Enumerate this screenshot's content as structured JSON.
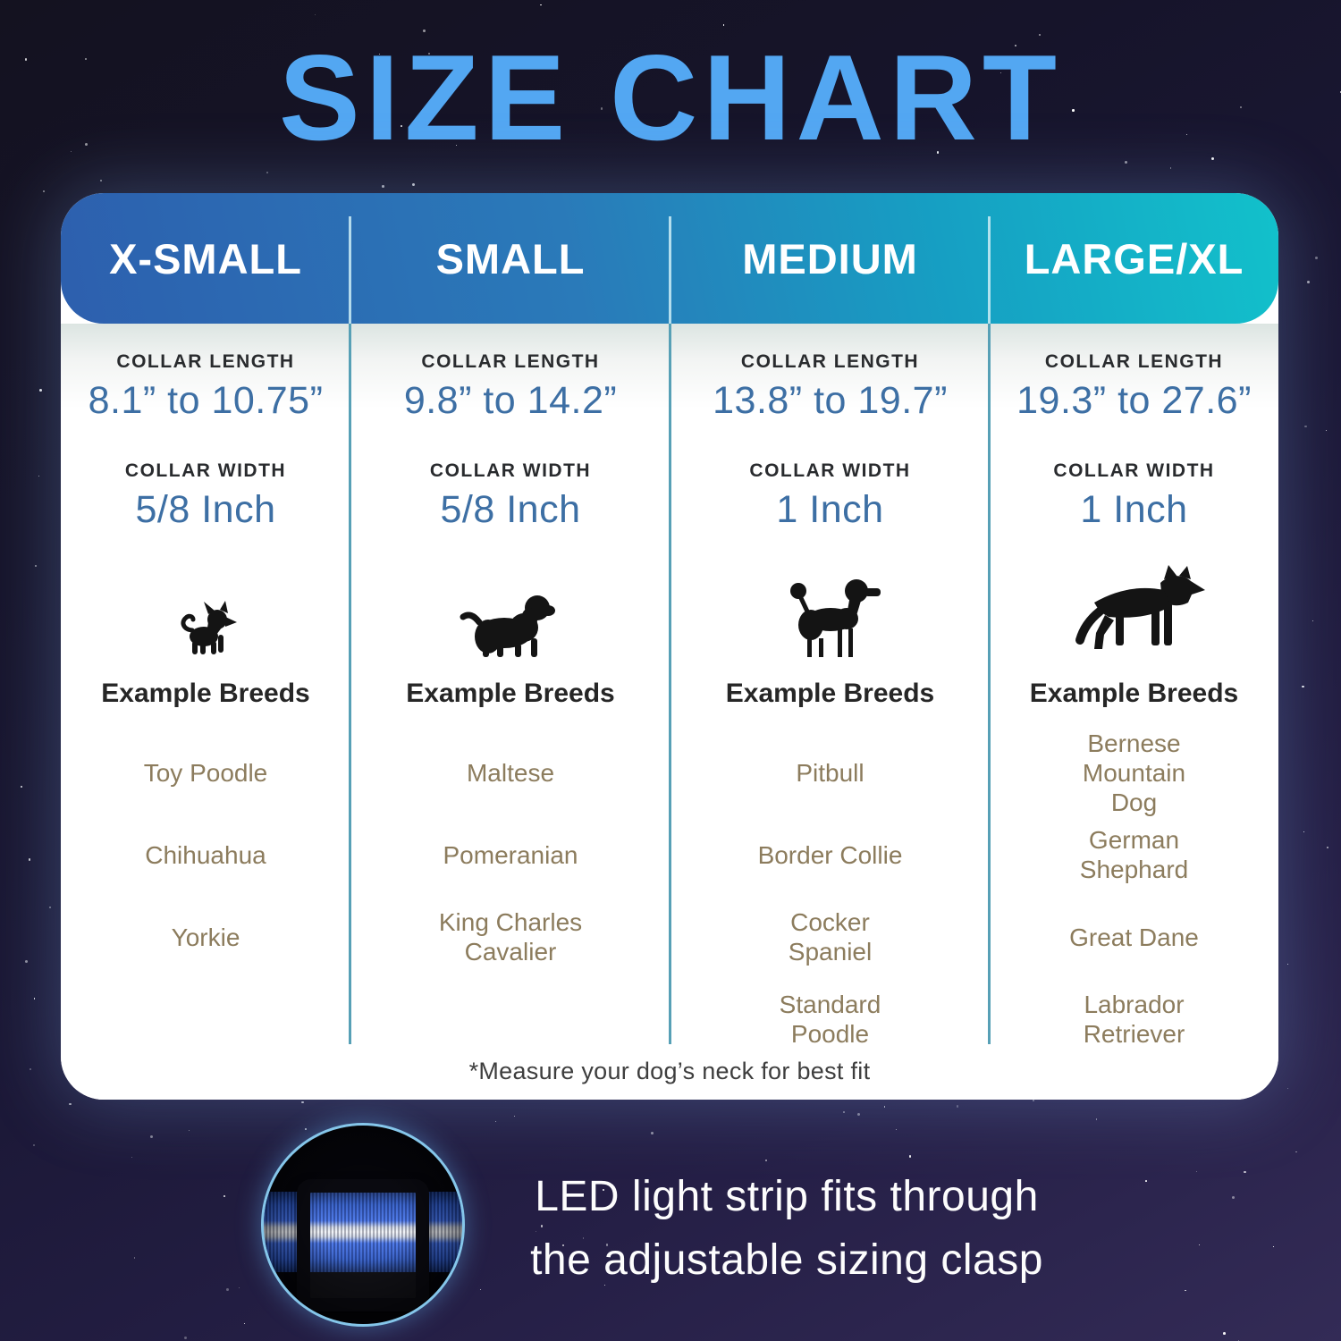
{
  "page": {
    "title": "SIZE CHART",
    "footnote": "*Measure your dog’s neck for best fit"
  },
  "columns": [
    {
      "name": "X-SMALL",
      "collar_length_label": "COLLAR LENGTH",
      "collar_length_value": "8.1” to 10.75”",
      "collar_width_label": "COLLAR WIDTH",
      "collar_width_value": "5/8 Inch",
      "dog_icon": "chihuahua-silhouette",
      "breeds_label": "Example Breeds",
      "breeds": [
        "Toy Poodle",
        "Chihuahua",
        "Yorkie"
      ]
    },
    {
      "name": "SMALL",
      "collar_length_label": "COLLAR LENGTH",
      "collar_length_value": "9.8” to 14.2”",
      "collar_width_label": "COLLAR WIDTH",
      "collar_width_value": "5/8 Inch",
      "dog_icon": "cavalier-spaniel-silhouette",
      "breeds_label": "Example Breeds",
      "breeds": [
        "Maltese",
        "Pomeranian",
        "King Charles Cavalier"
      ]
    },
    {
      "name": "MEDIUM",
      "collar_length_label": "COLLAR LENGTH",
      "collar_length_value": "13.8” to 19.7”",
      "collar_width_label": "COLLAR WIDTH",
      "collar_width_value": "1 Inch",
      "dog_icon": "poodle-silhouette",
      "breeds_label": "Example Breeds",
      "breeds": [
        "Pitbull",
        "Border Collie",
        "Cocker Spaniel",
        "Standard Poodle"
      ]
    },
    {
      "name": "LARGE/XL",
      "collar_length_label": "COLLAR LENGTH",
      "collar_length_value": "19.3” to 27.6”",
      "collar_width_label": "COLLAR WIDTH",
      "collar_width_value": "1 Inch",
      "dog_icon": "german-shepherd-silhouette",
      "breeds_label": "Example Breeds",
      "breeds": [
        "Bernese Mountain Dog",
        "German Shephard",
        "Great Dane",
        "Labrador Retriever"
      ]
    }
  ],
  "bottom": {
    "caption_line1": "LED light strip fits through",
    "caption_line2": "the adjustable sizing clasp",
    "image": "collar-clasp-led-strip-photo"
  },
  "colors": {
    "title_blue": "#53a7f2",
    "header_gradient_start": "#2d5fae",
    "header_gradient_end": "#12c1cb",
    "value_blue": "#3d6fa4",
    "breed_tan": "#8c7c5d",
    "divider_teal": "#57a0b6",
    "background_navy": "#16142a",
    "card_white": "#ffffff",
    "circle_border_blue": "#85c6ea",
    "strap_blue": "#3a6ae6"
  },
  "chart_data": {
    "type": "table",
    "title": "SIZE CHART",
    "columns": [
      "X-SMALL",
      "SMALL",
      "MEDIUM",
      "LARGE/XL"
    ],
    "rows": [
      {
        "label": "Collar Length",
        "values": [
          "8.1” to 10.75”",
          "9.8” to 14.2”",
          "13.8” to 19.7”",
          "19.3” to 27.6”"
        ]
      },
      {
        "label": "Collar Width",
        "values": [
          "5/8 Inch",
          "5/8 Inch",
          "1 Inch",
          "1 Inch"
        ]
      },
      {
        "label": "Example Breeds",
        "values": [
          [
            "Toy Poodle",
            "Chihuahua",
            "Yorkie"
          ],
          [
            "Maltese",
            "Pomeranian",
            "King Charles Cavalier"
          ],
          [
            "Pitbull",
            "Border Collie",
            "Cocker Spaniel",
            "Standard Poodle"
          ],
          [
            "Bernese Mountain Dog",
            "German Shephard",
            "Great Dane",
            "Labrador Retriever"
          ]
        ]
      }
    ],
    "footnote": "*Measure your dog’s neck for best fit"
  }
}
